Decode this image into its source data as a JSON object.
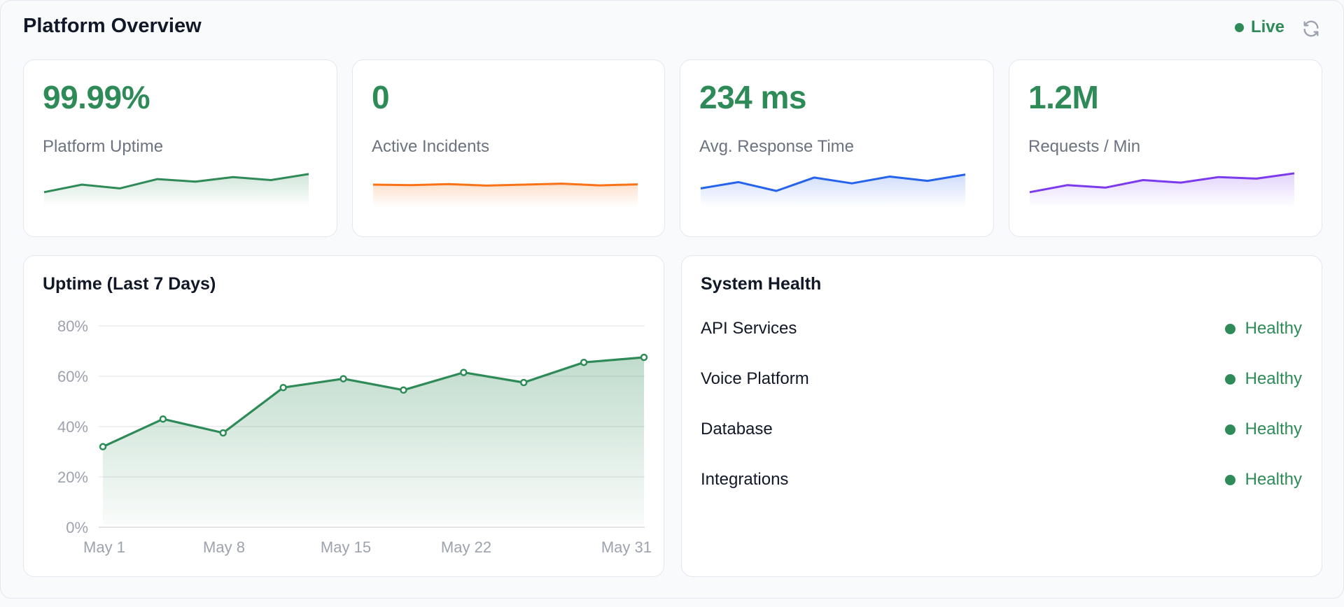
{
  "header": {
    "title": "Platform Overview",
    "live_label": "Live",
    "refresh_icon": "refresh-icon"
  },
  "colors": {
    "green": "#2e8b57",
    "orange": "#f97316",
    "blue": "#2563eb",
    "purple": "#7c3aed"
  },
  "kpis": [
    {
      "value": "99.99%",
      "label": "Platform Uptime",
      "color": "#2e8b57",
      "spark": [
        0.2,
        0.5,
        0.35,
        0.72,
        0.62,
        0.8,
        0.68,
        0.92
      ]
    },
    {
      "value": "0",
      "label": "Active Incidents",
      "color": "#f97316",
      "spark": [
        0.5,
        0.48,
        0.52,
        0.46,
        0.5,
        0.54,
        0.47,
        0.51
      ]
    },
    {
      "value": "234 ms",
      "label": "Avg. Response Time",
      "color": "#2563eb",
      "spark": [
        0.35,
        0.6,
        0.25,
        0.78,
        0.55,
        0.82,
        0.65,
        0.9
      ]
    },
    {
      "value": "1.2M",
      "label": "Requests / Min",
      "color": "#7c3aed",
      "spark": [
        0.2,
        0.48,
        0.38,
        0.68,
        0.58,
        0.8,
        0.74,
        0.95
      ]
    }
  ],
  "uptime_chart": {
    "title": "Uptime (Last 7 Days)"
  },
  "chart_data": {
    "type": "area",
    "title": "Uptime (Last 7 Days)",
    "x_tick_labels": [
      "May 1",
      "May 8",
      "May 15",
      "May 22",
      "May 31"
    ],
    "y_tick_labels": [
      "80%",
      "60%",
      "40%",
      "20%",
      "0%"
    ],
    "ylim": [
      0,
      80
    ],
    "values": [
      32,
      43,
      37.5,
      55.5,
      59,
      54.5,
      61.5,
      57.5,
      65.5,
      67.5
    ],
    "color": "#2e8b57",
    "grid": true
  },
  "system_health": {
    "title": "System Health",
    "items": [
      {
        "name": "API Services",
        "status": "Healthy"
      },
      {
        "name": "Voice Platform",
        "status": "Healthy"
      },
      {
        "name": "Database",
        "status": "Healthy"
      },
      {
        "name": "Integrations",
        "status": "Healthy"
      }
    ]
  }
}
